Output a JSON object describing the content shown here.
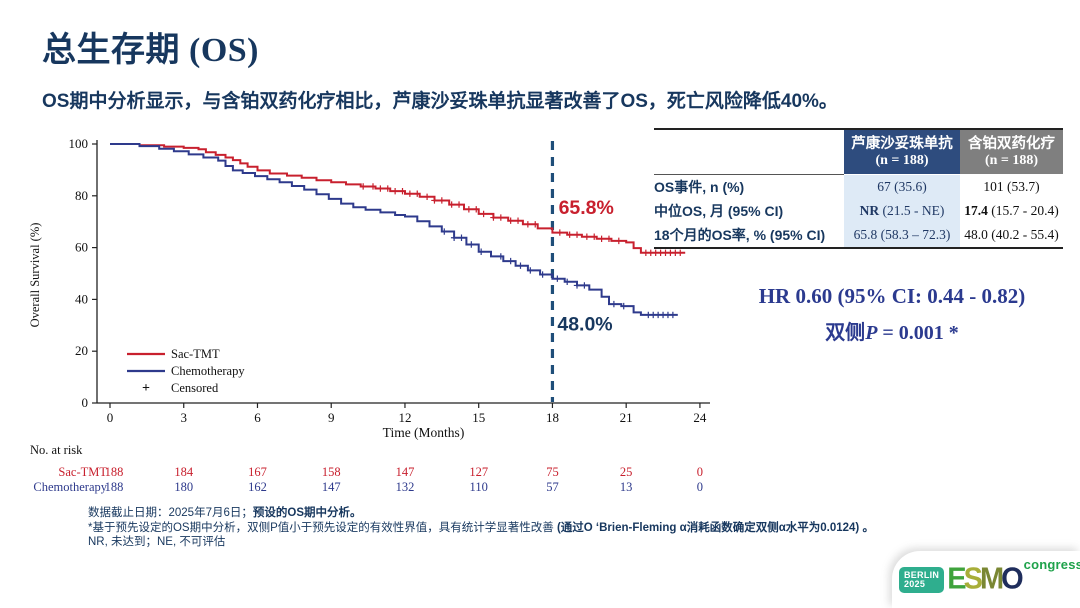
{
  "slide": {
    "title_cn": "总生存期",
    "title_en": " (OS)",
    "subtitle": "OS期中分析显示，与含铂双药化疗相比，芦康沙妥珠单抗显著改善了OS，死亡风险降低40%。"
  },
  "chart_data": {
    "type": "line",
    "subtype": "kaplan-meier-step",
    "xlabel": "Time (Months)",
    "ylabel": "Overall Survival (%)",
    "xlim": [
      0,
      24
    ],
    "xticks": [
      0,
      3,
      6,
      9,
      12,
      15,
      18,
      21,
      24
    ],
    "ylim": [
      0,
      100
    ],
    "yticks": [
      0,
      20,
      40,
      60,
      80,
      100
    ],
    "grid": false,
    "legend_position": "lower-left-inside",
    "reference_line_x": 18,
    "reference_line_color": "#1F4E79",
    "censored_legend_label": "Censored",
    "series": [
      {
        "name": "Sac-TMT",
        "color": "#C8202E",
        "points": [
          [
            0,
            100
          ],
          [
            1.2,
            99.5
          ],
          [
            2.2,
            99
          ],
          [
            3,
            98.5
          ],
          [
            3.6,
            98
          ],
          [
            3.9,
            96.8
          ],
          [
            4.3,
            95.8
          ],
          [
            4.7,
            94.8
          ],
          [
            5,
            93.8
          ],
          [
            5.3,
            92.5
          ],
          [
            5.6,
            91.2
          ],
          [
            6,
            89.8
          ],
          [
            6.5,
            88.6
          ],
          [
            7.2,
            87.8
          ],
          [
            7.8,
            87
          ],
          [
            8.4,
            86
          ],
          [
            9,
            85.2
          ],
          [
            9.6,
            84.4
          ],
          [
            10.2,
            83.6
          ],
          [
            10.8,
            82.8
          ],
          [
            11.4,
            81.8
          ],
          [
            12,
            80.8
          ],
          [
            12.6,
            79.6
          ],
          [
            13.2,
            78.2
          ],
          [
            13.8,
            76.6
          ],
          [
            14.4,
            74.8
          ],
          [
            15,
            73
          ],
          [
            15.6,
            71.6
          ],
          [
            16.2,
            70.4
          ],
          [
            16.8,
            69
          ],
          [
            17.4,
            67.4
          ],
          [
            18,
            65.8
          ],
          [
            18.6,
            65
          ],
          [
            19.2,
            64.2
          ],
          [
            19.8,
            63.4
          ],
          [
            20.4,
            62.6
          ],
          [
            21,
            62
          ],
          [
            21.3,
            59.8
          ],
          [
            21.6,
            58
          ],
          [
            23.4,
            58
          ]
        ],
        "censor_months": [
          10.3,
          10.7,
          11,
          11.3,
          11.6,
          11.9,
          12.2,
          12.5,
          12.9,
          13.2,
          13.5,
          13.9,
          14.2,
          14.6,
          14.9,
          15.2,
          15.6,
          15.9,
          16.3,
          16.6,
          17,
          17.3,
          18.3,
          18.7,
          19,
          19.4,
          19.7,
          20,
          20.3,
          20.7,
          21.8,
          22,
          22.2,
          22.4,
          22.6,
          22.8,
          23,
          23.2
        ],
        "annotation": {
          "text": "65.8%",
          "x": 18.25,
          "y": 73,
          "color": "#C8202E"
        }
      },
      {
        "name": "Chemotherapy",
        "color": "#2E3A8C",
        "points": [
          [
            0,
            100
          ],
          [
            1.2,
            99.2
          ],
          [
            2,
            98.2
          ],
          [
            2.6,
            97.2
          ],
          [
            3.2,
            96
          ],
          [
            3.8,
            94.8
          ],
          [
            4.4,
            93.6
          ],
          [
            4.7,
            91.5
          ],
          [
            5,
            89.8
          ],
          [
            5.4,
            88.8
          ],
          [
            5.9,
            87.6
          ],
          [
            6.4,
            86.4
          ],
          [
            6.9,
            85.2
          ],
          [
            7.4,
            83.8
          ],
          [
            7.9,
            82.4
          ],
          [
            8.4,
            80.6
          ],
          [
            8.9,
            78.8
          ],
          [
            9.4,
            77
          ],
          [
            9.9,
            75.6
          ],
          [
            10.4,
            74.6
          ],
          [
            11,
            73.6
          ],
          [
            11.6,
            72.6
          ],
          [
            12,
            72
          ],
          [
            12.5,
            70.2
          ],
          [
            13,
            68.2
          ],
          [
            13.5,
            66.2
          ],
          [
            14,
            63.8
          ],
          [
            14.5,
            61.2
          ],
          [
            15,
            58.4
          ],
          [
            15.5,
            56.6
          ],
          [
            16,
            54.8
          ],
          [
            16.5,
            53
          ],
          [
            17,
            51.2
          ],
          [
            17.5,
            49.6
          ],
          [
            18,
            48
          ],
          [
            18.5,
            46.8
          ],
          [
            19,
            45.4
          ],
          [
            19.5,
            43.8
          ],
          [
            20,
            41
          ],
          [
            20.3,
            38.2
          ],
          [
            20.8,
            37.4
          ],
          [
            21.3,
            35
          ],
          [
            21.6,
            34
          ],
          [
            23.1,
            34
          ]
        ],
        "censor_months": [
          13.6,
          14,
          14.3,
          14.7,
          15.1,
          15.9,
          16.3,
          16.7,
          17.1,
          17.6,
          18.2,
          18.6,
          19,
          19.3,
          20.5,
          20.9,
          21.9,
          22.1,
          22.3,
          22.5,
          22.7,
          22.9
        ],
        "annotation": {
          "text": "48.0%",
          "x": 18.2,
          "y": 28,
          "color": "#17375E"
        }
      }
    ]
  },
  "at_risk": {
    "title": "No. at risk",
    "timepoints": [
      0,
      3,
      6,
      9,
      12,
      15,
      18,
      21,
      24
    ],
    "rows": [
      {
        "label": "Sac-TMT",
        "color": "#C8202E",
        "values": [
          "188",
          "184",
          "167",
          "158",
          "147",
          "127",
          "75",
          "25",
          "0"
        ]
      },
      {
        "label": "Chemotherapy",
        "color": "#2E3A8C",
        "values": [
          "188",
          "180",
          "162",
          "147",
          "132",
          "110",
          "57",
          "13",
          "0"
        ]
      }
    ]
  },
  "results_table": {
    "headers": [
      {
        "name": "芦康沙妥珠单抗",
        "n": "(n = 188)"
      },
      {
        "name": "含铂双药化疗",
        "n": "(n = 188)"
      }
    ],
    "rows": [
      {
        "label": "OS事件, n (%)",
        "c1_strong": "",
        "c1": "67 (35.6)",
        "c2_strong": "",
        "c2": "101 (53.7)"
      },
      {
        "label": "中位OS, 月 (95% CI)",
        "c1_strong": "NR",
        "c1": " (21.5 - NE)",
        "c2_strong": "17.4",
        "c2": " (15.7 - 20.4)"
      },
      {
        "label": "18个月的OS率, % (95% CI)",
        "c1_strong": "",
        "c1": "65.8 (58.3 – 72.3)",
        "c2_strong": "",
        "c2": "48.0 (40.2 - 55.4)"
      }
    ]
  },
  "stats": {
    "hr_line": "HR 0.60 (95% CI: 0.44 - 0.82)",
    "p_prefix": "双侧",
    "p_var": "P",
    "p_rest": " = 0.001 *"
  },
  "footnotes": [
    {
      "normal": "数据截止日期：2025年7月6日；",
      "bold": "预设的OS期中分析。"
    },
    {
      "normal": "*基于预先设定的OS期中分析，双侧P值小于预先设定的有效性界值，具有统计学显著性改善 ",
      "bold": "(通过O ‘Brien-Fleming α消耗函数确定双侧α水平为0.0124) 。"
    },
    {
      "normal": "NR, 未达到；NE, 不可评估",
      "bold": ""
    }
  ],
  "logo": {
    "badge_line1": "BERLIN",
    "badge_line2": "2025",
    "letter_e": "E",
    "letter_s": "S",
    "letter_m": "M",
    "letter_o": "O",
    "congress": "congress"
  },
  "colors": {
    "title_navy": "#17375E",
    "stat_blue": "#2B3A8F",
    "sac_tmt_red": "#C8202E",
    "chemo_blue": "#2E3A8C",
    "reference_dash": "#1F4E79",
    "table_header_blue": "#2E4C7E",
    "table_header_gray": "#7F7F7F",
    "table_col1_bg": "#DEEAF6",
    "logo_teal": "#2FAE8E",
    "logo_green": "#1FA24B"
  }
}
